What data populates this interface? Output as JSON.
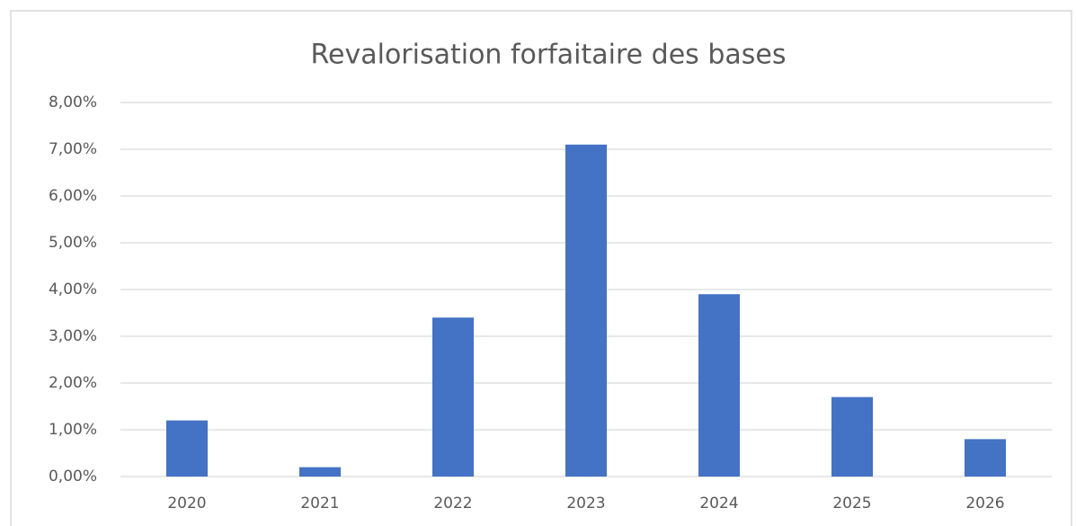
{
  "chart_data": {
    "type": "bar",
    "title": "Revalorisation forfaitaire des bases",
    "categories": [
      "2020",
      "2021",
      "2022",
      "2023",
      "2024",
      "2025",
      "2026"
    ],
    "values": [
      1.2,
      0.2,
      3.4,
      7.1,
      3.9,
      1.7,
      0.8
    ],
    "color": "#4472c4",
    "ylim": [
      0,
      8
    ],
    "yticks": [
      {
        "value": 0,
        "label": "0,00%"
      },
      {
        "value": 1,
        "label": "1,00%"
      },
      {
        "value": 2,
        "label": "2,00%"
      },
      {
        "value": 3,
        "label": "3,00%"
      },
      {
        "value": 4,
        "label": "4,00%"
      },
      {
        "value": 5,
        "label": "5,00%"
      },
      {
        "value": 6,
        "label": "6,00%"
      },
      {
        "value": 7,
        "label": "7,00%"
      },
      {
        "value": 8,
        "label": "8,00%"
      }
    ],
    "grid": true
  }
}
